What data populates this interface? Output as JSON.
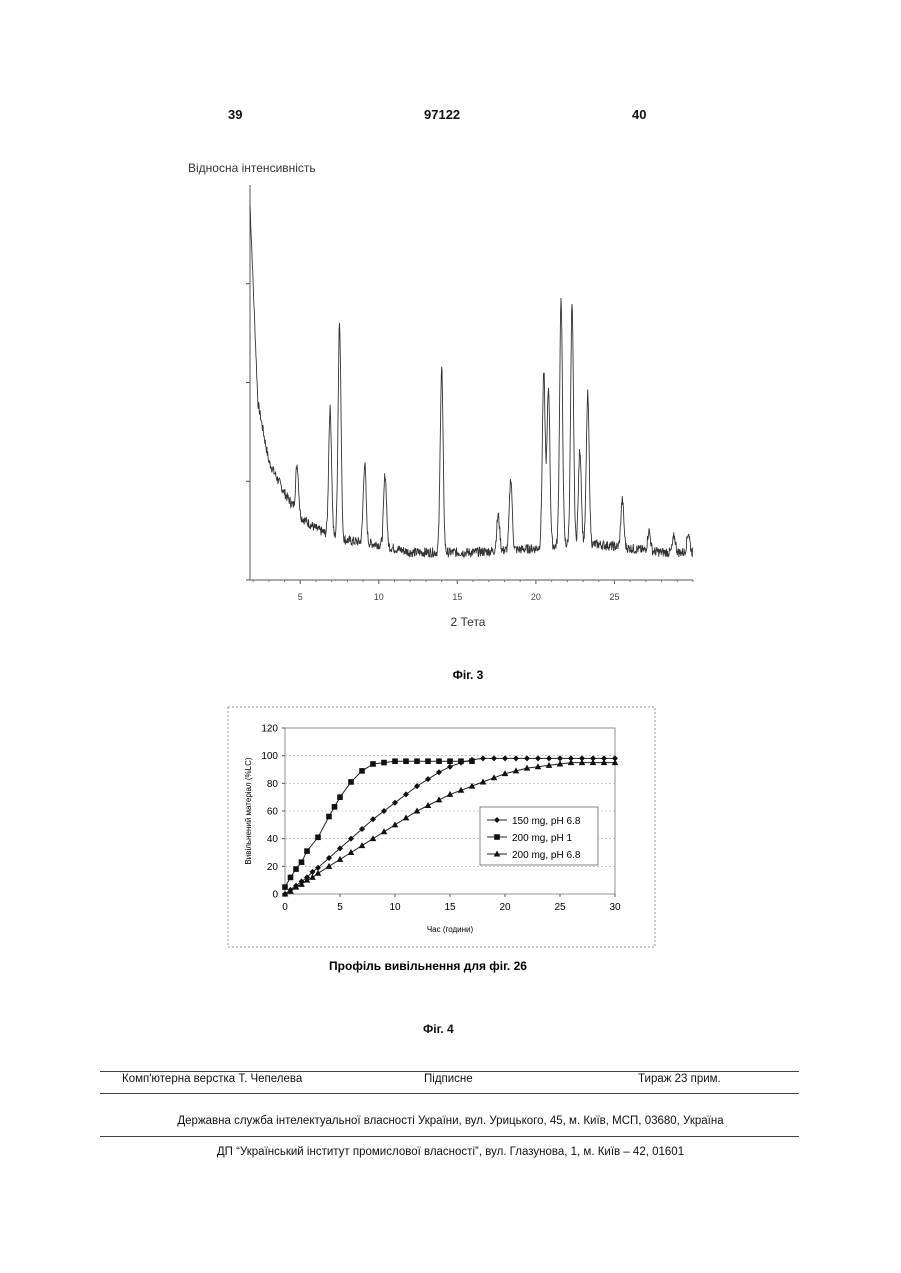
{
  "header": {
    "left_page": "39",
    "doc_number": "97122",
    "right_page": "40"
  },
  "figure3": {
    "chart_data": {
      "type": "line",
      "ylabel": "Відносна інтенсивність",
      "xlabel": "2 Тета",
      "x_ticks": [
        5,
        10,
        15,
        20,
        25
      ],
      "xlim": [
        1.8,
        30
      ],
      "ylim": [
        0,
        100
      ],
      "grid": false,
      "legend": "none",
      "baseline": [
        [
          1.8,
          95
        ],
        [
          2.3,
          45
        ],
        [
          3,
          30
        ],
        [
          4,
          22
        ],
        [
          5,
          16
        ],
        [
          6,
          13
        ],
        [
          7,
          11
        ],
        [
          8,
          10
        ],
        [
          9,
          9.5
        ],
        [
          10,
          9
        ],
        [
          12,
          7
        ],
        [
          14,
          7
        ],
        [
          16,
          7
        ],
        [
          18,
          7.5
        ],
        [
          20,
          8
        ],
        [
          22,
          9
        ],
        [
          24,
          9
        ],
        [
          26,
          8
        ],
        [
          28,
          7
        ],
        [
          30,
          7
        ]
      ],
      "peaks": [
        [
          4.8,
          12
        ],
        [
          6.9,
          32
        ],
        [
          7.5,
          55
        ],
        [
          9.1,
          20
        ],
        [
          10.4,
          18
        ],
        [
          14.0,
          47
        ],
        [
          17.6,
          9
        ],
        [
          18.4,
          18
        ],
        [
          20.5,
          44
        ],
        [
          20.8,
          40
        ],
        [
          21.6,
          62
        ],
        [
          22.3,
          60
        ],
        [
          22.8,
          24
        ],
        [
          23.3,
          38
        ],
        [
          25.5,
          12
        ],
        [
          27.2,
          5
        ],
        [
          28.8,
          4
        ],
        [
          29.7,
          5
        ]
      ],
      "noise_amplitude": 2.5
    },
    "caption": "Фіг. 3"
  },
  "figure4": {
    "chart_data": {
      "type": "line",
      "ylabel": "Вивільнений матеріал (%LC)",
      "xlabel": "Час (години)",
      "xlim": [
        0,
        30
      ],
      "ylim": [
        0,
        120
      ],
      "x_ticks": [
        0,
        5,
        10,
        15,
        20,
        25,
        30
      ],
      "y_ticks": [
        0,
        20,
        40,
        60,
        80,
        100,
        120
      ],
      "grid": true,
      "legend": "right",
      "series": [
        {
          "name": "150 mg, pH 6.8",
          "marker": "diamond",
          "points": [
            [
              0,
              0
            ],
            [
              0.5,
              3
            ],
            [
              1,
              6
            ],
            [
              1.5,
              9
            ],
            [
              2,
              12
            ],
            [
              2.5,
              16
            ],
            [
              3,
              19
            ],
            [
              4,
              26
            ],
            [
              5,
              33
            ],
            [
              6,
              40
            ],
            [
              7,
              47
            ],
            [
              8,
              54
            ],
            [
              9,
              60
            ],
            [
              10,
              66
            ],
            [
              11,
              72
            ],
            [
              12,
              78
            ],
            [
              13,
              83
            ],
            [
              14,
              88
            ],
            [
              15,
              92
            ],
            [
              16,
              95
            ],
            [
              17,
              97
            ],
            [
              18,
              98
            ],
            [
              19,
              98
            ],
            [
              20,
              98
            ],
            [
              21,
              98
            ],
            [
              22,
              98
            ],
            [
              23,
              98
            ],
            [
              24,
              98
            ],
            [
              25,
              98
            ],
            [
              26,
              98
            ],
            [
              27,
              98
            ],
            [
              28,
              98
            ],
            [
              29,
              98
            ],
            [
              30,
              98
            ]
          ]
        },
        {
          "name": "200 mg, pH 1",
          "marker": "square",
          "points": [
            [
              0,
              5
            ],
            [
              0.5,
              12
            ],
            [
              1,
              18
            ],
            [
              1.5,
              23
            ],
            [
              2,
              31
            ],
            [
              3,
              41
            ],
            [
              4,
              56
            ],
            [
              4.5,
              63
            ],
            [
              5,
              70
            ],
            [
              6,
              81
            ],
            [
              7,
              89
            ],
            [
              8,
              94
            ],
            [
              9,
              95
            ],
            [
              10,
              96
            ],
            [
              11,
              96
            ],
            [
              12,
              96
            ],
            [
              13,
              96
            ],
            [
              14,
              96
            ],
            [
              15,
              96
            ],
            [
              16,
              96
            ],
            [
              17,
              96
            ]
          ]
        },
        {
          "name": "200 mg, pH 6.8",
          "marker": "triangle",
          "points": [
            [
              0,
              0
            ],
            [
              0.5,
              2
            ],
            [
              1,
              5
            ],
            [
              1.5,
              7
            ],
            [
              2,
              10
            ],
            [
              2.5,
              12
            ],
            [
              3,
              15
            ],
            [
              4,
              20
            ],
            [
              5,
              25
            ],
            [
              6,
              30
            ],
            [
              7,
              35
            ],
            [
              8,
              40
            ],
            [
              9,
              45
            ],
            [
              10,
              50
            ],
            [
              11,
              55
            ],
            [
              12,
              60
            ],
            [
              13,
              64
            ],
            [
              14,
              68
            ],
            [
              15,
              72
            ],
            [
              16,
              75
            ],
            [
              17,
              78
            ],
            [
              18,
              81
            ],
            [
              19,
              84
            ],
            [
              20,
              87
            ],
            [
              21,
              89
            ],
            [
              22,
              91
            ],
            [
              23,
              92
            ],
            [
              24,
              93
            ],
            [
              25,
              94
            ],
            [
              26,
              95
            ],
            [
              27,
              95
            ],
            [
              28,
              95
            ],
            [
              29,
              95
            ],
            [
              30,
              95
            ]
          ]
        }
      ]
    },
    "title": "Профіль вивільнення для фіг. 26",
    "caption": "Фіг. 4"
  },
  "footer": {
    "typesetter": "Комп'ютерна верстка Т. Чепелева",
    "signed": "Підписне",
    "circulation": "Тираж 23 прим.",
    "agency": "Державна служба інтелектуальної власності України, вул. Урицького, 45, м. Київ, МСП, 03680, Україна",
    "institute": "ДП “Український інститут промислової власності”, вул. Глазунова, 1, м. Київ – 42, 01601"
  }
}
